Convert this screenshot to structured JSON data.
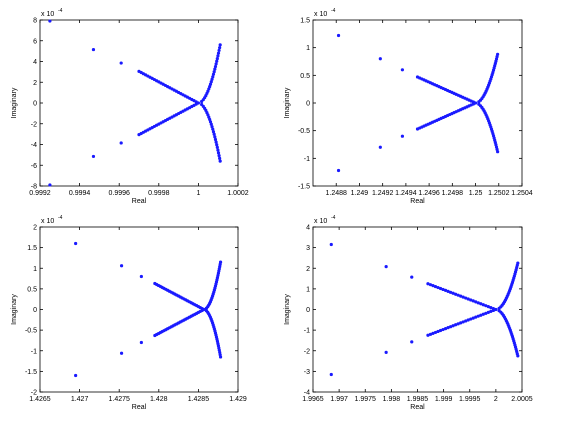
{
  "chart_data": [
    {
      "type": "scatter",
      "xlabel": "Real",
      "ylabel": "Imaginary",
      "y_multiplier": "x 10",
      "y_exponent": "-4",
      "xlim": [
        0.9992,
        1.0002
      ],
      "ylim": [
        -8,
        8
      ],
      "x_ticks": [
        0.9992,
        0.9994,
        0.9996,
        0.9998,
        1.0,
        1.0002
      ],
      "x_tick_labels": [
        "0.9992",
        "0.9994",
        "0.9996",
        "0.9998",
        "1",
        "1.0002"
      ],
      "y_ticks": [
        -8,
        -6,
        -4,
        -2,
        0,
        2,
        4,
        6,
        8
      ],
      "y_tick_labels": [
        "-8",
        "-6",
        "-4",
        "-2",
        "0",
        "2",
        "4",
        "6",
        "8"
      ],
      "color": "#1a1aff",
      "fan": {
        "root": [
          1.0,
          0.0
        ],
        "arms": [
          [
            0.99925,
            7.9
          ],
          [
            0.99947,
            5.15
          ],
          [
            0.99961,
            3.85
          ],
          [
            0.9997,
            3.05
          ]
        ],
        "right_tip": [
          1.00011,
          5.6
        ],
        "inner_radius": 1.5e-05
      },
      "points": []
    },
    {
      "type": "scatter",
      "xlabel": "Real",
      "ylabel": "Imaginary",
      "y_multiplier": "x 10",
      "y_exponent": "-4",
      "xlim": [
        1.2486,
        1.2504
      ],
      "ylim": [
        -1.5,
        1.5
      ],
      "x_ticks": [
        1.2488,
        1.249,
        1.2492,
        1.2494,
        1.2496,
        1.2498,
        1.25,
        1.2502,
        1.2504
      ],
      "x_tick_labels": [
        "1.2488",
        "1.249",
        "1.2492",
        "1.2494",
        "1.2496",
        "1.2498",
        "1.25",
        "1.2502",
        "1.2504"
      ],
      "y_ticks": [
        -1.5,
        -1,
        -0.5,
        0,
        0.5,
        1,
        1.5
      ],
      "y_tick_labels": [
        "-1.5",
        "-1",
        "-0.5",
        "0",
        "0.5",
        "1",
        "1.5"
      ],
      "color": "#1a1aff",
      "fan": {
        "root": [
          1.25,
          0.0
        ],
        "arms": [
          [
            1.24882,
            1.22
          ],
          [
            1.24918,
            0.8
          ],
          [
            1.24937,
            0.6
          ],
          [
            1.2495,
            0.47
          ]
        ],
        "right_tip": [
          1.25019,
          0.88
        ],
        "inner_radius": 2.5e-05
      },
      "points": []
    },
    {
      "type": "scatter",
      "xlabel": "Real",
      "ylabel": "Imaginary",
      "y_multiplier": "x 10",
      "y_exponent": "-4",
      "xlim": [
        1.4265,
        1.429
      ],
      "ylim": [
        -2,
        2
      ],
      "x_ticks": [
        1.4265,
        1.427,
        1.4275,
        1.428,
        1.4285,
        1.429
      ],
      "x_tick_labels": [
        "1.4265",
        "1.427",
        "1.4275",
        "1.428",
        "1.4285",
        "1.429"
      ],
      "y_ticks": [
        -2,
        -1.5,
        -1,
        -0.5,
        0,
        0.5,
        1,
        1.5,
        2
      ],
      "y_tick_labels": [
        "-2",
        "-1.5",
        "-1",
        "-0.5",
        "0",
        "0.5",
        "1",
        "1.5",
        "2"
      ],
      "color": "#1a1aff",
      "fan": {
        "root": [
          1.42857,
          0.0
        ],
        "arms": [
          [
            1.42695,
            1.6
          ],
          [
            1.42753,
            1.06
          ],
          [
            1.42778,
            0.8
          ],
          [
            1.42795,
            0.63
          ]
        ],
        "right_tip": [
          1.42878,
          1.15
        ],
        "inner_radius": 3e-05
      },
      "points": []
    },
    {
      "type": "scatter",
      "xlabel": "Real",
      "ylabel": "Imaginary",
      "y_multiplier": "x 10",
      "y_exponent": "-4",
      "xlim": [
        1.9965,
        2.0005
      ],
      "ylim": [
        -4,
        4
      ],
      "x_ticks": [
        1.9965,
        1.997,
        1.9975,
        1.998,
        1.9985,
        1.999,
        1.9995,
        2.0,
        2.0005
      ],
      "x_tick_labels": [
        "1.9965",
        "1.997",
        "1.9975",
        "1.998",
        "1.9985",
        "1.999",
        "1.9995",
        "2",
        "2.0005"
      ],
      "y_ticks": [
        -4,
        -3,
        -2,
        -1,
        0,
        1,
        2,
        3,
        4
      ],
      "y_tick_labels": [
        "-4",
        "-3",
        "-2",
        "-1",
        "0",
        "1",
        "2",
        "3",
        "4"
      ],
      "color": "#1a1aff",
      "fan": {
        "root": [
          2.0,
          0.0
        ],
        "arms": [
          [
            1.99685,
            3.15
          ],
          [
            1.9979,
            2.08
          ],
          [
            1.99839,
            1.57
          ],
          [
            1.9987,
            1.25
          ]
        ],
        "right_tip": [
          2.00042,
          2.25
        ],
        "inner_radius": 5e-05
      },
      "points": []
    }
  ]
}
